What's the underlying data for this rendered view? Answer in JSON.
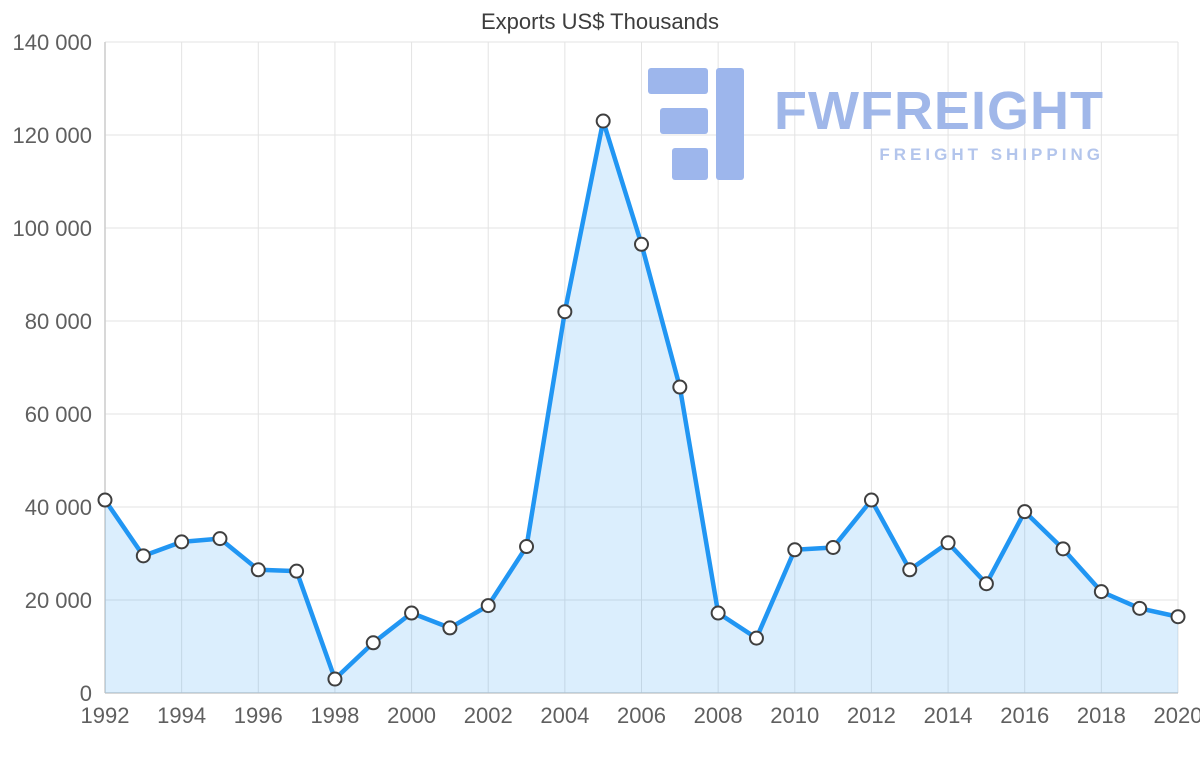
{
  "watermark": {
    "brand": "FWFREIGHT",
    "tagline": "FREIGHT SHIPPING",
    "brand_color": "#a0b7e9",
    "tagline_color": "#b3c5ec",
    "logo_color": "#9db6ec"
  },
  "chart_data": {
    "type": "area",
    "title": "Exports US$ Thousands",
    "xlabel": "",
    "ylabel": "",
    "x": [
      1992,
      1993,
      1994,
      1995,
      1996,
      1997,
      1998,
      1999,
      2000,
      2001,
      2002,
      2003,
      2004,
      2005,
      2006,
      2007,
      2008,
      2009,
      2010,
      2011,
      2012,
      2013,
      2014,
      2015,
      2016,
      2017,
      2018,
      2019,
      2020
    ],
    "values": [
      41500,
      29500,
      32500,
      33200,
      26500,
      26200,
      3000,
      10800,
      17200,
      14000,
      18800,
      31500,
      82000,
      123000,
      96500,
      65800,
      17200,
      11800,
      30800,
      31300,
      41500,
      26500,
      32300,
      23500,
      39000,
      31000,
      21800,
      18200,
      16400
    ],
    "ylim": [
      0,
      140000
    ],
    "y_ticks": [
      0,
      20000,
      40000,
      60000,
      80000,
      100000,
      120000,
      140000
    ],
    "y_tick_labels": [
      "0",
      "20 000",
      "40 000",
      "60 000",
      "80 000",
      "100 000",
      "120 000",
      "140 000"
    ],
    "x_tick_labels": [
      "1992",
      "1994",
      "1996",
      "1998",
      "2000",
      "2002",
      "2004",
      "2006",
      "2008",
      "2010",
      "2012",
      "2014",
      "2016",
      "2018",
      "2020"
    ],
    "grid": true,
    "legend": false,
    "colors": {
      "line": "#2196f3",
      "fill": "rgba(33,150,243,0.16)",
      "marker_fill": "#ffffff",
      "marker_stroke": "#3f3f3f",
      "grid": "#e3e3e3",
      "axis": "#cccccc",
      "tick_text": "#5f5f5f",
      "title_text": "#3d3d3d"
    }
  }
}
